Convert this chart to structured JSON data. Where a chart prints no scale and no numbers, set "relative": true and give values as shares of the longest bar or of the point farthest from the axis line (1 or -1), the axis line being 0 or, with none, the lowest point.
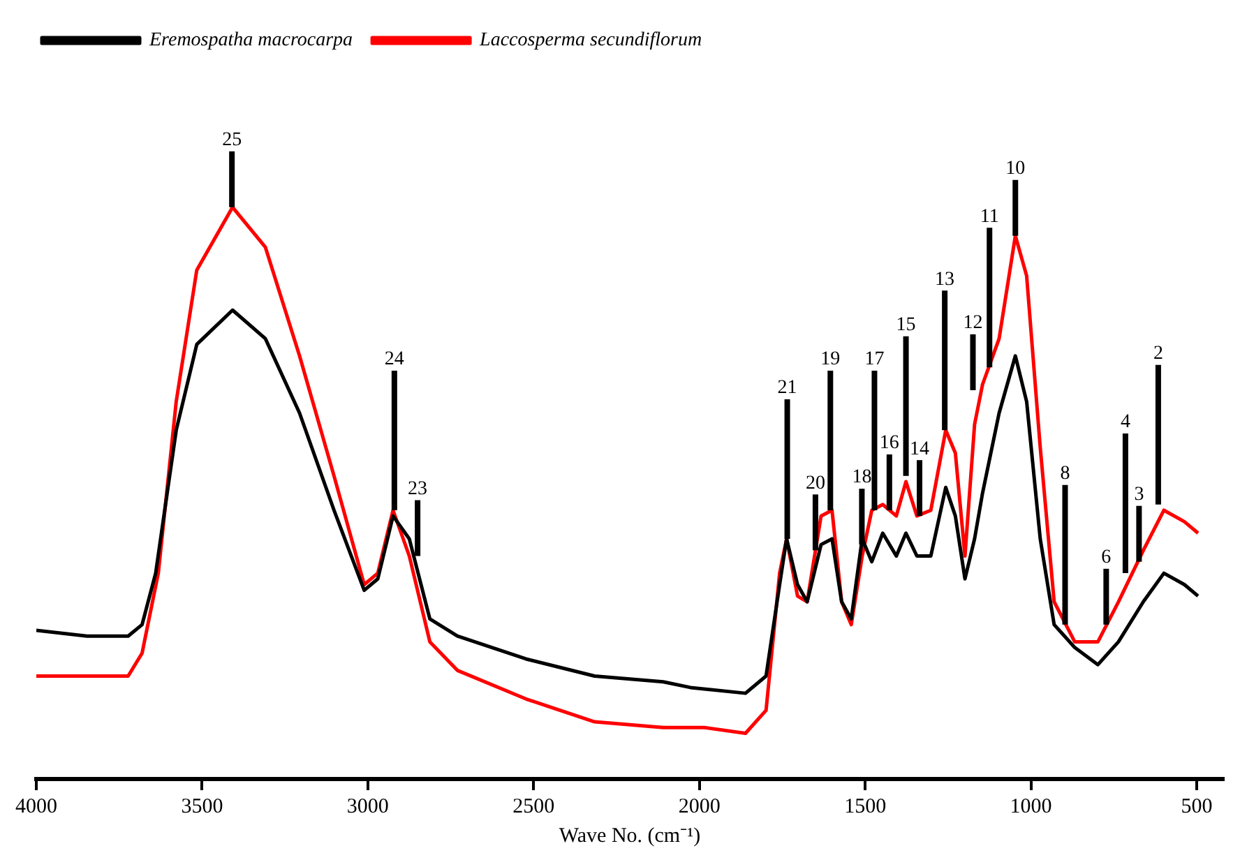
{
  "chart_data": {
    "type": "line",
    "xlabel": "Wave No. (cm⁻¹)",
    "relative": true,
    "grid": false,
    "legend": "top left",
    "marker": "none",
    "line_style": "solid",
    "xlim": [
      4000,
      420
    ],
    "xticks": [
      4000,
      3500,
      3000,
      2500,
      2000,
      1500,
      1000,
      500
    ],
    "series": [
      {
        "name": "Eremospatha macrocarpa",
        "color": "#000000",
        "x": [
          4000,
          3847,
          3723,
          3681,
          3640,
          3578,
          3516,
          3408,
          3309,
          3206,
          3102,
          3011,
          2970,
          2924,
          2875,
          2813,
          2730,
          2523,
          2316,
          2109,
          2027,
          1861,
          1799,
          1758,
          1737,
          1704,
          1675,
          1633,
          1600,
          1571,
          1542,
          1509,
          1480,
          1447,
          1406,
          1377,
          1344,
          1302,
          1257,
          1228,
          1199,
          1170,
          1146,
          1096,
          1047,
          1013,
          972,
          930,
          868,
          798,
          736,
          661,
          599,
          537,
          496
        ],
        "values": [
          0.26,
          0.25,
          0.25,
          0.27,
          0.36,
          0.61,
          0.76,
          0.82,
          0.77,
          0.64,
          0.47,
          0.33,
          0.35,
          0.46,
          0.42,
          0.28,
          0.25,
          0.21,
          0.18,
          0.17,
          0.16,
          0.15,
          0.18,
          0.34,
          0.42,
          0.34,
          0.31,
          0.41,
          0.42,
          0.31,
          0.28,
          0.42,
          0.38,
          0.43,
          0.39,
          0.43,
          0.39,
          0.39,
          0.51,
          0.46,
          0.35,
          0.42,
          0.5,
          0.64,
          0.74,
          0.66,
          0.42,
          0.27,
          0.23,
          0.2,
          0.24,
          0.31,
          0.36,
          0.34,
          0.32
        ]
      },
      {
        "name": "Laccosperma secundiflorum",
        "color": "#ff0000",
        "x": [
          4000,
          3723,
          3681,
          3632,
          3578,
          3516,
          3408,
          3309,
          3206,
          3102,
          3011,
          2970,
          2924,
          2875,
          2813,
          2730,
          2523,
          2316,
          2109,
          1985,
          1861,
          1799,
          1758,
          1737,
          1704,
          1675,
          1633,
          1600,
          1571,
          1542,
          1509,
          1480,
          1447,
          1406,
          1377,
          1344,
          1302,
          1257,
          1228,
          1199,
          1170,
          1146,
          1096,
          1047,
          1013,
          972,
          930,
          868,
          798,
          736,
          661,
          599,
          537,
          496
        ],
        "values": [
          0.18,
          0.18,
          0.22,
          0.36,
          0.66,
          0.89,
          1,
          0.93,
          0.74,
          0.53,
          0.34,
          0.36,
          0.47,
          0.39,
          0.24,
          0.19,
          0.14,
          0.1,
          0.09,
          0.09,
          0.08,
          0.12,
          0.36,
          0.42,
          0.32,
          0.31,
          0.46,
          0.47,
          0.31,
          0.27,
          0.39,
          0.47,
          0.48,
          0.46,
          0.52,
          0.46,
          0.47,
          0.61,
          0.57,
          0.39,
          0.62,
          0.69,
          0.77,
          0.95,
          0.88,
          0.58,
          0.31,
          0.24,
          0.24,
          0.31,
          0.4,
          0.47,
          0.45,
          0.43
        ]
      }
    ],
    "annotations": [
      {
        "text": "25",
        "x": 3410,
        "y": 1
      },
      {
        "text": "24",
        "x": 2920,
        "y": 0.47
      },
      {
        "text": "23",
        "x": 2850,
        "y": 0.39
      },
      {
        "text": "21",
        "x": 1735,
        "y": 0.42
      },
      {
        "text": "20",
        "x": 1650,
        "y": 0.4
      },
      {
        "text": "19",
        "x": 1605,
        "y": 0.47
      },
      {
        "text": "18",
        "x": 1510,
        "y": 0.41
      },
      {
        "text": "17",
        "x": 1472,
        "y": 0.47
      },
      {
        "text": "16",
        "x": 1427,
        "y": 0.47
      },
      {
        "text": "15",
        "x": 1377,
        "y": 0.53
      },
      {
        "text": "14",
        "x": 1336,
        "y": 0.46
      },
      {
        "text": "13",
        "x": 1260,
        "y": 0.61
      },
      {
        "text": "12",
        "x": 1175,
        "y": 0.68
      },
      {
        "text": "11",
        "x": 1125,
        "y": 0.72
      },
      {
        "text": "10",
        "x": 1047,
        "y": 0.95
      },
      {
        "text": "8",
        "x": 897,
        "y": 0.27
      },
      {
        "text": "6",
        "x": 773,
        "y": 0.27
      },
      {
        "text": "4",
        "x": 715,
        "y": 0.36
      },
      {
        "text": "3",
        "x": 674,
        "y": 0.38
      },
      {
        "text": "2",
        "x": 616,
        "y": 0.48
      }
    ]
  }
}
